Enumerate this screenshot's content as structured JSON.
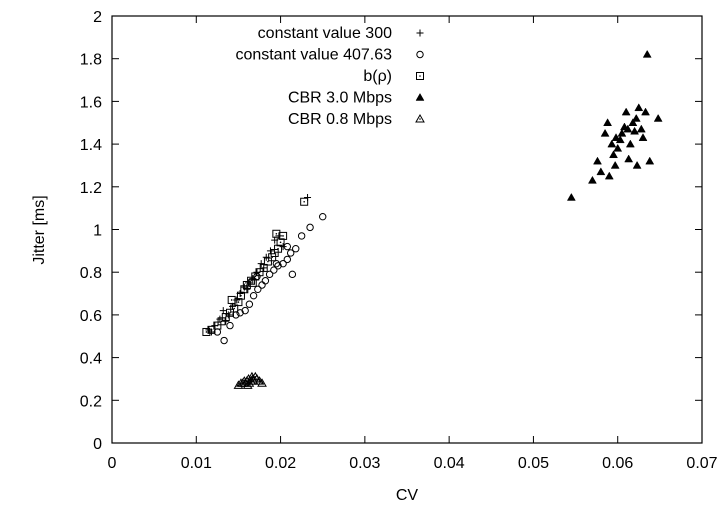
{
  "chart_data": {
    "type": "scatter",
    "title": "",
    "xlabel": "CV",
    "ylabel": "Jitter [ms]",
    "xlim": [
      0,
      0.07
    ],
    "ylim": [
      0,
      2
    ],
    "x_ticks": [
      "0",
      "0.01",
      "0.02",
      "0.03",
      "0.04",
      "0.05",
      "0.06",
      "0.07"
    ],
    "y_ticks": [
      "0",
      "0.2",
      "0.4",
      "0.6",
      "0.8",
      "1",
      "1.2",
      "1.4",
      "1.6",
      "1.8",
      "2"
    ],
    "x_tick_values": [
      0,
      0.01,
      0.02,
      0.03,
      0.04,
      0.05,
      0.06,
      0.07
    ],
    "y_tick_values": [
      0,
      0.2,
      0.4,
      0.6,
      0.8,
      1,
      1.2,
      1.4,
      1.6,
      1.8,
      2
    ],
    "grid": false,
    "legend_position": "top-left",
    "series": [
      {
        "name": "constant value 300",
        "marker": "plus",
        "points": [
          [
            0.0115,
            0.53
          ],
          [
            0.0122,
            0.55
          ],
          [
            0.0128,
            0.58
          ],
          [
            0.0132,
            0.62
          ],
          [
            0.0138,
            0.6
          ],
          [
            0.0143,
            0.64
          ],
          [
            0.0148,
            0.67
          ],
          [
            0.0152,
            0.7
          ],
          [
            0.0157,
            0.73
          ],
          [
            0.0162,
            0.75
          ],
          [
            0.0167,
            0.77
          ],
          [
            0.0172,
            0.8
          ],
          [
            0.0177,
            0.84
          ],
          [
            0.0183,
            0.87
          ],
          [
            0.0188,
            0.9
          ],
          [
            0.0193,
            0.95
          ],
          [
            0.0198,
            0.97
          ],
          [
            0.0203,
            0.92
          ],
          [
            0.0232,
            1.15
          ],
          [
            0.0118,
            0.52
          ],
          [
            0.0135,
            0.57
          ],
          [
            0.016,
            0.72
          ],
          [
            0.018,
            0.82
          ]
        ]
      },
      {
        "name": "constant value 407.63",
        "marker": "circle",
        "points": [
          [
            0.0125,
            0.52
          ],
          [
            0.0133,
            0.48
          ],
          [
            0.014,
            0.55
          ],
          [
            0.0147,
            0.6
          ],
          [
            0.0152,
            0.61
          ],
          [
            0.0158,
            0.62
          ],
          [
            0.0163,
            0.65
          ],
          [
            0.0168,
            0.69
          ],
          [
            0.0173,
            0.72
          ],
          [
            0.0178,
            0.74
          ],
          [
            0.0182,
            0.76
          ],
          [
            0.0187,
            0.79
          ],
          [
            0.0192,
            0.81
          ],
          [
            0.0197,
            0.83
          ],
          [
            0.0203,
            0.84
          ],
          [
            0.0208,
            0.86
          ],
          [
            0.0212,
            0.89
          ],
          [
            0.0218,
            0.91
          ],
          [
            0.0214,
            0.79
          ],
          [
            0.0225,
            0.97
          ],
          [
            0.0235,
            1.01
          ],
          [
            0.025,
            1.06
          ],
          [
            0.0208,
            0.92
          ],
          [
            0.0195,
            0.84
          ],
          [
            0.0172,
            0.78
          ]
        ]
      },
      {
        "name": "b(ρ)",
        "marker": "square",
        "points": [
          [
            0.0112,
            0.52
          ],
          [
            0.0118,
            0.53
          ],
          [
            0.0125,
            0.55
          ],
          [
            0.013,
            0.57
          ],
          [
            0.0135,
            0.59
          ],
          [
            0.014,
            0.61
          ],
          [
            0.0145,
            0.63
          ],
          [
            0.015,
            0.66
          ],
          [
            0.0153,
            0.69
          ],
          [
            0.0157,
            0.72
          ],
          [
            0.016,
            0.74
          ],
          [
            0.0165,
            0.76
          ],
          [
            0.017,
            0.78
          ],
          [
            0.0175,
            0.8
          ],
          [
            0.018,
            0.82
          ],
          [
            0.0185,
            0.85
          ],
          [
            0.019,
            0.87
          ],
          [
            0.0193,
            0.89
          ],
          [
            0.0197,
            0.91
          ],
          [
            0.02,
            0.94
          ],
          [
            0.0195,
            0.98
          ],
          [
            0.0203,
            0.97
          ],
          [
            0.0228,
            1.13
          ],
          [
            0.0142,
            0.67
          ],
          [
            0.0167,
            0.75
          ]
        ]
      },
      {
        "name": "CBR 3.0 Mbps",
        "marker": "filled-triangle",
        "points": [
          [
            0.0545,
            1.15
          ],
          [
            0.057,
            1.23
          ],
          [
            0.058,
            1.27
          ],
          [
            0.0585,
            1.45
          ],
          [
            0.059,
            1.25
          ],
          [
            0.0593,
            1.4
          ],
          [
            0.0595,
            1.35
          ],
          [
            0.0597,
            1.3
          ],
          [
            0.06,
            1.38
          ],
          [
            0.0603,
            1.42
          ],
          [
            0.0605,
            1.45
          ],
          [
            0.0608,
            1.48
          ],
          [
            0.061,
            1.55
          ],
          [
            0.0612,
            1.47
          ],
          [
            0.0615,
            1.4
          ],
          [
            0.0618,
            1.5
          ],
          [
            0.062,
            1.46
          ],
          [
            0.0622,
            1.52
          ],
          [
            0.0625,
            1.57
          ],
          [
            0.0628,
            1.47
          ],
          [
            0.063,
            1.43
          ],
          [
            0.0633,
            1.55
          ],
          [
            0.0635,
            1.82
          ],
          [
            0.0638,
            1.32
          ],
          [
            0.0648,
            1.52
          ],
          [
            0.0588,
            1.5
          ],
          [
            0.0598,
            1.43
          ],
          [
            0.0613,
            1.33
          ],
          [
            0.0623,
            1.3
          ],
          [
            0.0576,
            1.32
          ]
        ]
      },
      {
        "name": "CBR 0.8 Mbps",
        "marker": "open-triangle",
        "points": [
          [
            0.015,
            0.27
          ],
          [
            0.0153,
            0.28
          ],
          [
            0.0155,
            0.28
          ],
          [
            0.0157,
            0.29
          ],
          [
            0.0158,
            0.28
          ],
          [
            0.016,
            0.29
          ],
          [
            0.0162,
            0.3
          ],
          [
            0.0163,
            0.28
          ],
          [
            0.0165,
            0.29
          ],
          [
            0.0167,
            0.3
          ],
          [
            0.0168,
            0.29
          ],
          [
            0.017,
            0.31
          ],
          [
            0.0172,
            0.3
          ],
          [
            0.0175,
            0.29
          ],
          [
            0.0178,
            0.28
          ],
          [
            0.0161,
            0.27
          ],
          [
            0.0166,
            0.31
          ]
        ]
      }
    ]
  }
}
